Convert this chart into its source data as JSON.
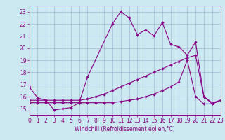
{
  "xlabel": "Windchill (Refroidissement éolien,°C)",
  "background_color": "#cce8f0",
  "line_color": "#880088",
  "grid_color": "#99aacc",
  "xlim": [
    0,
    23
  ],
  "ylim": [
    14.5,
    23.5
  ],
  "xticks": [
    0,
    1,
    2,
    3,
    4,
    5,
    6,
    7,
    8,
    9,
    10,
    11,
    12,
    13,
    14,
    15,
    16,
    17,
    18,
    19,
    20,
    21,
    22,
    23
  ],
  "yticks": [
    15,
    16,
    17,
    18,
    19,
    20,
    21,
    22,
    23
  ],
  "line1_x": [
    0,
    1,
    2,
    3,
    4,
    5,
    6,
    7,
    10,
    11,
    12,
    13,
    14,
    15,
    16,
    17,
    18,
    19,
    20,
    21,
    22,
    23
  ],
  "line1_y": [
    16.8,
    15.9,
    15.7,
    14.9,
    15.0,
    15.1,
    15.5,
    17.6,
    22.0,
    23.0,
    22.5,
    21.1,
    21.5,
    21.0,
    22.1,
    20.3,
    20.1,
    19.4,
    20.5,
    16.0,
    15.4,
    15.7
  ],
  "line2_x": [
    0,
    1,
    2,
    3,
    4,
    5,
    6,
    7,
    8,
    9,
    10,
    11,
    12,
    13,
    14,
    15,
    16,
    17,
    18,
    19,
    20,
    21,
    22,
    23
  ],
  "line2_y": [
    15.5,
    15.5,
    15.5,
    15.5,
    15.5,
    15.5,
    15.5,
    15.5,
    15.5,
    15.5,
    15.5,
    15.6,
    15.7,
    15.8,
    16.0,
    16.2,
    16.5,
    16.8,
    17.2,
    19.0,
    16.0,
    15.4,
    15.4,
    15.7
  ],
  "line3_x": [
    0,
    1,
    2,
    3,
    4,
    5,
    6,
    7,
    8,
    9,
    10,
    11,
    12,
    13,
    14,
    15,
    16,
    17,
    18,
    19,
    20,
    21,
    22,
    23
  ],
  "line3_y": [
    15.7,
    15.7,
    15.7,
    15.7,
    15.7,
    15.7,
    15.7,
    15.8,
    16.0,
    16.2,
    16.5,
    16.8,
    17.1,
    17.4,
    17.7,
    18.0,
    18.3,
    18.6,
    18.9,
    19.2,
    19.4,
    16.0,
    15.5,
    15.7
  ],
  "markersize": 2.0,
  "linewidth": 0.8,
  "tick_fontsize": 5.5,
  "xlabel_fontsize": 5.5
}
